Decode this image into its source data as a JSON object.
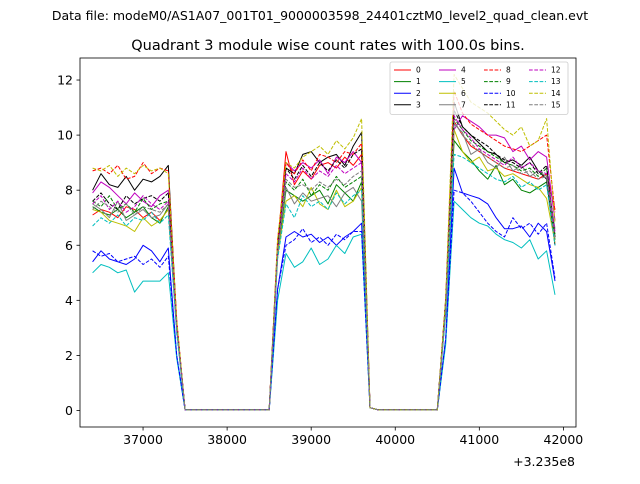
{
  "header": {
    "suptitle": "Data file: modeM0/AS1A07_001T01_9000003598_24401cztM0_level2_quad_clean.evt"
  },
  "chart_data": {
    "type": "line",
    "title": "Quadrant 3 module wise count rates with 100.0s bins.",
    "xlabel": "",
    "ylabel": "",
    "x_offset_label": "+3.235e8",
    "xlim": [
      36250,
      42150
    ],
    "ylim": [
      -0.6,
      12.8
    ],
    "x_ticks": [
      37000,
      38000,
      39000,
      40000,
      41000,
      42000
    ],
    "x_tick_labels": [
      "37000",
      "38000",
      "39000",
      "40000",
      "41000",
      "42000"
    ],
    "y_ticks": [
      0,
      2,
      4,
      6,
      8,
      10,
      12
    ],
    "y_tick_labels": [
      "0",
      "2",
      "4",
      "6",
      "8",
      "10",
      "12"
    ],
    "grid": false,
    "legend_position": "top-right",
    "legend_columns": 4,
    "x": [
      36400,
      36500,
      36600,
      36700,
      36800,
      36900,
      37000,
      37100,
      37200,
      37300,
      37400,
      37500,
      37600,
      37700,
      37800,
      37900,
      38000,
      38100,
      38200,
      38300,
      38400,
      38500,
      38600,
      38700,
      38800,
      38900,
      39000,
      39100,
      39200,
      39300,
      39400,
      39500,
      39600,
      39700,
      39800,
      39900,
      40000,
      40100,
      40200,
      40300,
      40400,
      40500,
      40600,
      40700,
      40800,
      40900,
      41000,
      41100,
      41200,
      41300,
      41400,
      41500,
      41600,
      41700,
      41800,
      41900
    ],
    "series": [
      {
        "name": "0",
        "color": "#ff0000",
        "dash": "solid",
        "values": [
          7.1,
          7.3,
          7.2,
          7.0,
          7.4,
          7.3,
          7.0,
          7.2,
          6.9,
          7.3,
          3.0,
          0.02,
          0.02,
          0.02,
          0.02,
          0.02,
          0.02,
          0.02,
          0.02,
          0.02,
          0.02,
          0.02,
          6.0,
          9.4,
          8.2,
          8.7,
          8.4,
          8.9,
          9.0,
          8.8,
          9.2,
          8.9,
          9.3,
          0.1,
          0.02,
          0.02,
          0.02,
          0.02,
          0.02,
          0.02,
          0.02,
          0.02,
          4.0,
          10.5,
          10.0,
          9.6,
          9.4,
          9.2,
          9.0,
          8.8,
          8.7,
          8.6,
          8.5,
          8.4,
          8.6,
          7.3
        ]
      },
      {
        "name": "1",
        "color": "#008000",
        "dash": "solid",
        "values": [
          7.4,
          7.2,
          7.1,
          7.3,
          7.0,
          7.2,
          7.4,
          7.0,
          6.8,
          7.4,
          3.0,
          0.02,
          0.02,
          0.02,
          0.02,
          0.02,
          0.02,
          0.02,
          0.02,
          0.02,
          0.02,
          0.02,
          5.6,
          8.0,
          7.8,
          7.6,
          7.8,
          8.0,
          7.5,
          8.2,
          7.9,
          7.6,
          8.3,
          0.1,
          0.02,
          0.02,
          0.02,
          0.02,
          0.02,
          0.02,
          0.02,
          0.02,
          3.6,
          9.8,
          9.4,
          9.1,
          8.7,
          8.4,
          8.9,
          8.2,
          8.4,
          8.0,
          7.9,
          8.1,
          8.3,
          6.2
        ]
      },
      {
        "name": "2",
        "color": "#0000ff",
        "dash": "solid",
        "values": [
          5.4,
          5.8,
          5.5,
          5.4,
          5.3,
          5.5,
          6.0,
          5.8,
          5.4,
          5.9,
          2.0,
          0.02,
          0.02,
          0.02,
          0.02,
          0.02,
          0.02,
          0.02,
          0.02,
          0.02,
          0.02,
          0.02,
          4.4,
          6.3,
          6.5,
          6.3,
          6.4,
          6.1,
          6.3,
          6.0,
          6.3,
          6.5,
          6.8,
          0.1,
          0.02,
          0.02,
          0.02,
          0.02,
          0.02,
          0.02,
          0.02,
          0.02,
          2.6,
          8.8,
          7.9,
          7.8,
          7.7,
          7.5,
          7.0,
          6.6,
          6.6,
          6.7,
          6.3,
          6.8,
          6.5,
          4.7
        ]
      },
      {
        "name": "3",
        "color": "#000000",
        "dash": "solid",
        "values": [
          8.0,
          8.6,
          8.2,
          8.1,
          8.5,
          8.0,
          8.4,
          8.3,
          8.5,
          8.9,
          3.2,
          0.02,
          0.02,
          0.02,
          0.02,
          0.02,
          0.02,
          0.02,
          0.02,
          0.02,
          0.02,
          0.02,
          6.0,
          8.8,
          8.6,
          9.3,
          9.4,
          9.0,
          9.2,
          9.3,
          8.9,
          9.6,
          10.1,
          0.1,
          0.02,
          0.02,
          0.02,
          0.02,
          0.02,
          0.02,
          0.02,
          0.02,
          4.0,
          11.2,
          10.3,
          10.0,
          9.7,
          9.4,
          9.3,
          9.0,
          9.1,
          8.9,
          9.2,
          8.7,
          8.4,
          6.0
        ]
      },
      {
        "name": "4",
        "color": "#bf00bf",
        "dash": "solid",
        "values": [
          7.9,
          8.3,
          8.1,
          7.8,
          7.5,
          7.9,
          7.6,
          7.4,
          7.8,
          8.0,
          3.2,
          0.02,
          0.02,
          0.02,
          0.02,
          0.02,
          0.02,
          0.02,
          0.02,
          0.02,
          0.02,
          0.02,
          5.8,
          9.0,
          8.7,
          9.0,
          8.8,
          9.1,
          8.6,
          9.2,
          9.0,
          9.4,
          9.0,
          0.1,
          0.02,
          0.02,
          0.02,
          0.02,
          0.02,
          0.02,
          0.02,
          0.02,
          3.8,
          10.2,
          10.7,
          10.5,
          10.3,
          10.0,
          10.0,
          9.9,
          9.4,
          9.6,
          9.1,
          9.4,
          9.2,
          6.9
        ]
      },
      {
        "name": "5",
        "color": "#00bfbf",
        "dash": "solid",
        "values": [
          5.0,
          5.3,
          5.2,
          5.0,
          5.1,
          4.3,
          4.7,
          4.7,
          4.7,
          5.0,
          1.9,
          0.02,
          0.02,
          0.02,
          0.02,
          0.02,
          0.02,
          0.02,
          0.02,
          0.02,
          0.02,
          0.02,
          4.0,
          5.7,
          5.2,
          5.4,
          5.9,
          5.3,
          5.5,
          6.0,
          5.7,
          6.3,
          6.4,
          0.1,
          0.02,
          0.02,
          0.02,
          0.02,
          0.02,
          0.02,
          0.02,
          0.02,
          2.4,
          7.6,
          7.3,
          7.0,
          6.8,
          6.7,
          6.4,
          6.2,
          6.1,
          5.9,
          6.2,
          5.5,
          5.8,
          4.2
        ]
      },
      {
        "name": "6",
        "color": "#bfbf00",
        "dash": "solid",
        "values": [
          7.3,
          7.2,
          6.9,
          6.8,
          6.7,
          6.5,
          7.0,
          6.7,
          6.9,
          7.3,
          2.9,
          0.02,
          0.02,
          0.02,
          0.02,
          0.02,
          0.02,
          0.02,
          0.02,
          0.02,
          0.02,
          0.02,
          5.6,
          7.6,
          7.8,
          7.4,
          8.1,
          7.5,
          7.3,
          8.0,
          7.4,
          7.6,
          8.1,
          0.1,
          0.02,
          0.02,
          0.02,
          0.02,
          0.02,
          0.02,
          0.02,
          0.02,
          3.6,
          10.2,
          9.4,
          9.0,
          9.2,
          8.7,
          8.8,
          8.5,
          8.6,
          8.4,
          8.2,
          8.1,
          7.7,
          6.1
        ]
      },
      {
        "name": "7",
        "color": "#7f7f7f",
        "dash": "solid",
        "values": [
          7.5,
          7.3,
          7.0,
          7.6,
          6.9,
          7.1,
          7.3,
          7.0,
          7.1,
          7.5,
          3.0,
          0.02,
          0.02,
          0.02,
          0.02,
          0.02,
          0.02,
          0.02,
          0.02,
          0.02,
          0.02,
          0.02,
          5.8,
          8.1,
          7.5,
          7.9,
          7.6,
          7.7,
          7.8,
          7.4,
          7.9,
          8.1,
          7.6,
          0.1,
          0.02,
          0.02,
          0.02,
          0.02,
          0.02,
          0.02,
          0.02,
          0.02,
          3.8,
          10.4,
          10.1,
          9.3,
          9.5,
          9.0,
          8.8,
          9.2,
          8.7,
          8.9,
          8.5,
          8.7,
          8.5,
          6.6
        ]
      },
      {
        "name": "8",
        "color": "#ff0000",
        "dash": "dashed",
        "values": [
          8.7,
          8.8,
          8.6,
          8.9,
          8.4,
          8.5,
          9.0,
          8.6,
          8.8,
          8.7,
          3.3,
          0.02,
          0.02,
          0.02,
          0.02,
          0.02,
          0.02,
          0.02,
          0.02,
          0.02,
          0.02,
          0.02,
          6.2,
          9.0,
          8.6,
          9.1,
          8.7,
          9.3,
          9.2,
          9.0,
          9.4,
          9.3,
          9.7,
          0.1,
          0.02,
          0.02,
          0.02,
          0.02,
          0.02,
          0.02,
          0.02,
          0.02,
          4.0,
          11.6,
          10.8,
          10.4,
          10.2,
          10.0,
          9.8,
          9.6,
          9.5,
          9.4,
          9.6,
          9.8,
          10.0,
          7.2
        ]
      },
      {
        "name": "9",
        "color": "#008000",
        "dash": "dashed",
        "values": [
          7.6,
          7.4,
          7.8,
          7.3,
          7.5,
          7.2,
          7.7,
          7.3,
          7.5,
          7.6,
          3.0,
          0.02,
          0.02,
          0.02,
          0.02,
          0.02,
          0.02,
          0.02,
          0.02,
          0.02,
          0.02,
          0.02,
          5.8,
          8.3,
          8.0,
          8.4,
          7.8,
          8.2,
          8.0,
          8.5,
          8.1,
          8.3,
          8.5,
          0.1,
          0.02,
          0.02,
          0.02,
          0.02,
          0.02,
          0.02,
          0.02,
          0.02,
          3.8,
          10.6,
          10.2,
          9.8,
          9.6,
          9.4,
          9.2,
          9.0,
          8.9,
          8.7,
          8.8,
          8.5,
          8.8,
          6.4
        ]
      },
      {
        "name": "10",
        "color": "#0000ff",
        "dash": "dashed",
        "values": [
          5.8,
          5.6,
          5.7,
          5.4,
          5.5,
          5.6,
          5.3,
          5.5,
          5.2,
          5.6,
          2.0,
          0.02,
          0.02,
          0.02,
          0.02,
          0.02,
          0.02,
          0.02,
          0.02,
          0.02,
          0.02,
          0.02,
          4.4,
          6.0,
          6.2,
          6.6,
          6.1,
          6.3,
          6.0,
          6.4,
          6.2,
          6.5,
          6.5,
          0.1,
          0.02,
          0.02,
          0.02,
          0.02,
          0.02,
          0.02,
          0.02,
          0.02,
          2.6,
          8.0,
          7.9,
          7.6,
          7.2,
          6.8,
          6.5,
          6.3,
          7.0,
          6.6,
          6.8,
          6.4,
          6.8,
          4.8
        ]
      },
      {
        "name": "11",
        "color": "#000000",
        "dash": "dashed",
        "values": [
          7.6,
          7.9,
          7.5,
          7.3,
          7.8,
          7.5,
          7.7,
          7.8,
          7.6,
          7.9,
          3.1,
          0.02,
          0.02,
          0.02,
          0.02,
          0.02,
          0.02,
          0.02,
          0.02,
          0.02,
          0.02,
          0.02,
          5.9,
          8.8,
          8.4,
          8.9,
          8.5,
          9.0,
          8.7,
          9.1,
          8.8,
          9.3,
          9.5,
          0.1,
          0.02,
          0.02,
          0.02,
          0.02,
          0.02,
          0.02,
          0.02,
          0.02,
          3.9,
          10.9,
          10.3,
          10.0,
          9.8,
          9.6,
          9.3,
          9.1,
          9.0,
          8.8,
          9.0,
          8.6,
          8.9,
          6.3
        ]
      },
      {
        "name": "12",
        "color": "#bf00bf",
        "dash": "dashed",
        "values": [
          7.5,
          7.8,
          7.3,
          7.6,
          7.2,
          7.4,
          7.8,
          7.5,
          7.3,
          7.6,
          3.0,
          0.02,
          0.02,
          0.02,
          0.02,
          0.02,
          0.02,
          0.02,
          0.02,
          0.02,
          0.02,
          0.02,
          5.7,
          8.6,
          8.3,
          8.8,
          8.4,
          8.7,
          8.5,
          8.9,
          8.6,
          8.8,
          9.0,
          0.1,
          0.02,
          0.02,
          0.02,
          0.02,
          0.02,
          0.02,
          0.02,
          0.02,
          3.7,
          10.7,
          10.2,
          9.9,
          9.5,
          9.3,
          9.1,
          8.9,
          9.2,
          8.8,
          9.0,
          8.7,
          8.6,
          6.5
        ]
      },
      {
        "name": "13",
        "color": "#00bfbf",
        "dash": "dashed",
        "values": [
          6.7,
          7.0,
          6.8,
          7.1,
          6.7,
          7.0,
          6.9,
          7.2,
          6.8,
          7.1,
          2.8,
          0.02,
          0.02,
          0.02,
          0.02,
          0.02,
          0.02,
          0.02,
          0.02,
          0.02,
          0.02,
          0.02,
          5.5,
          7.5,
          7.0,
          7.8,
          7.4,
          7.6,
          7.3,
          7.9,
          7.5,
          7.8,
          8.0,
          0.1,
          0.02,
          0.02,
          0.02,
          0.02,
          0.02,
          0.02,
          0.02,
          0.02,
          3.5,
          9.3,
          9.2,
          9.0,
          8.8,
          8.6,
          8.4,
          8.3,
          8.5,
          8.1,
          8.3,
          8.0,
          8.2,
          6.0
        ]
      },
      {
        "name": "14",
        "color": "#bfbf00",
        "dash": "dashed",
        "values": [
          8.8,
          8.7,
          8.9,
          8.5,
          8.8,
          8.6,
          8.9,
          8.7,
          8.8,
          8.6,
          3.3,
          0.02,
          0.02,
          0.02,
          0.02,
          0.02,
          0.02,
          0.02,
          0.02,
          0.02,
          0.02,
          0.02,
          6.2,
          9.0,
          8.8,
          9.2,
          9.4,
          9.6,
          9.3,
          9.8,
          9.5,
          9.9,
          10.6,
          0.1,
          0.02,
          0.02,
          0.02,
          0.02,
          0.02,
          0.02,
          0.02,
          0.02,
          4.1,
          12.2,
          11.7,
          11.2,
          11.0,
          10.8,
          10.5,
          10.2,
          10.0,
          10.3,
          9.6,
          9.8,
          10.6,
          6.8
        ]
      },
      {
        "name": "15",
        "color": "#7f7f7f",
        "dash": "dashed",
        "values": [
          7.3,
          7.6,
          7.4,
          7.2,
          7.5,
          7.1,
          7.4,
          7.3,
          7.2,
          7.5,
          3.0,
          0.02,
          0.02,
          0.02,
          0.02,
          0.02,
          0.02,
          0.02,
          0.02,
          0.02,
          0.02,
          0.02,
          5.7,
          8.4,
          8.1,
          8.2,
          8.0,
          8.3,
          8.1,
          8.4,
          8.2,
          8.5,
          8.7,
          0.1,
          0.02,
          0.02,
          0.02,
          0.02,
          0.02,
          0.02,
          0.02,
          0.02,
          3.7,
          10.5,
          10.0,
          9.7,
          9.4,
          9.2,
          9.0,
          8.8,
          8.9,
          8.6,
          8.7,
          8.4,
          8.5,
          6.2
        ]
      }
    ]
  }
}
